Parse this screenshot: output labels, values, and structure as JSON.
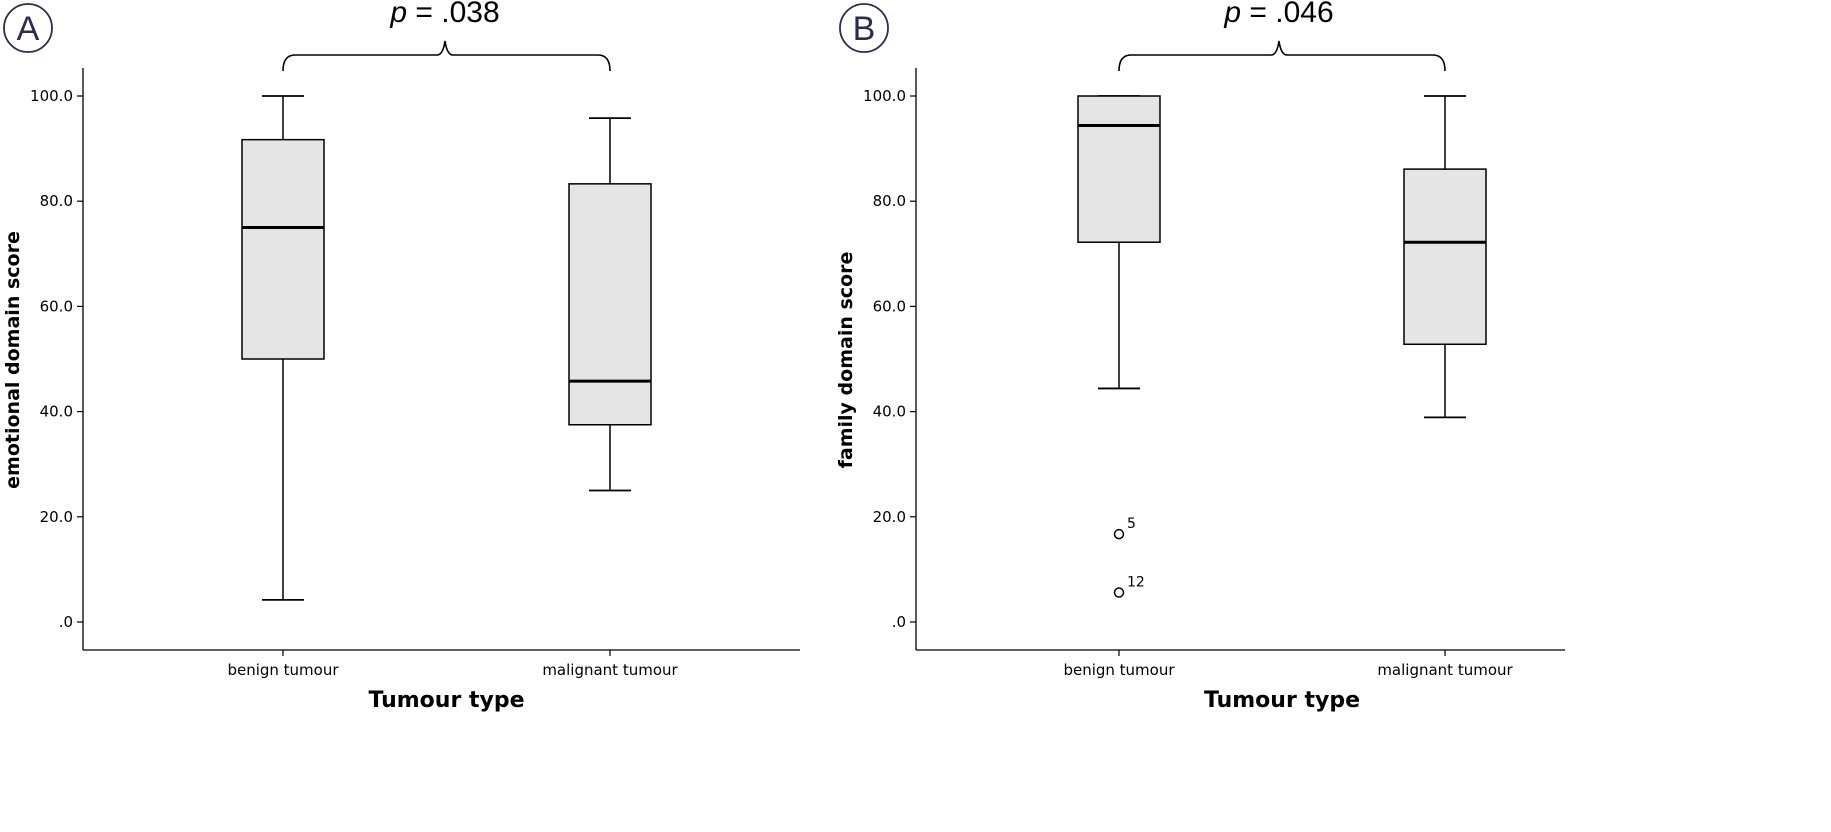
{
  "chart_data": [
    {
      "type": "boxplot",
      "panel_label": "A",
      "p_value_label": "p",
      "p_value_text": " = .038",
      "xlabel": "Tumour type",
      "ylabel": "emotional domain score",
      "ylim": [
        -5,
        105
      ],
      "yticks": [
        ".0",
        "20.0",
        "40.0",
        "60.0",
        "80.0",
        "100.0"
      ],
      "categories": [
        "benign tumour",
        "malignant tumour"
      ],
      "boxes": [
        {
          "category": "benign tumour",
          "min": 4.2,
          "q1": 50.0,
          "median": 75.0,
          "q3": 91.7,
          "max": 100.0,
          "outliers": []
        },
        {
          "category": "malignant tumour",
          "min": 25.0,
          "q1": 37.5,
          "median": 45.8,
          "q3": 83.3,
          "max": 95.8,
          "outliers": []
        }
      ],
      "colors": {
        "box_fill": "#e5e5e5",
        "stroke": "#000000"
      }
    },
    {
      "type": "boxplot",
      "panel_label": "B",
      "p_value_label": "p",
      "p_value_text": " = .046",
      "xlabel": "Tumour type",
      "ylabel": "family domain score",
      "ylim": [
        -5,
        105
      ],
      "yticks": [
        ".0",
        "20.0",
        "40.0",
        "60.0",
        "80.0",
        "100.0"
      ],
      "categories": [
        "benign tumour",
        "malignant tumour"
      ],
      "boxes": [
        {
          "category": "benign tumour",
          "min": 44.4,
          "q1": 72.2,
          "median": 94.4,
          "q3": 100.0,
          "max": 100.0,
          "outliers": [
            {
              "value": 16.7,
              "label": "5"
            },
            {
              "value": 5.6,
              "label": "12"
            }
          ]
        },
        {
          "category": "malignant tumour",
          "min": 38.9,
          "q1": 52.8,
          "median": 72.2,
          "q3": 86.1,
          "max": 100.0,
          "outliers": []
        }
      ],
      "colors": {
        "box_fill": "#e5e5e5",
        "stroke": "#000000"
      }
    }
  ]
}
